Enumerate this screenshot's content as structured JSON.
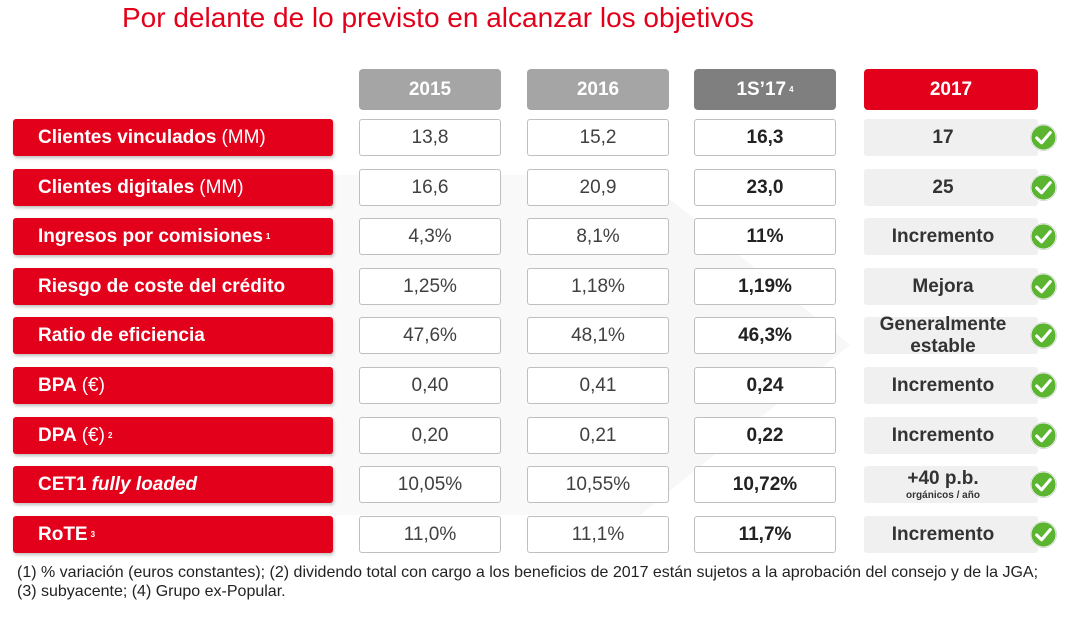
{
  "title": "Por delante de lo previsto en alcanzar los objetivos",
  "headers": [
    {
      "label": "2015",
      "sup": ""
    },
    {
      "label": "2016",
      "sup": ""
    },
    {
      "label": "1S’17",
      "sup": "4"
    },
    {
      "label": "2017",
      "sup": ""
    }
  ],
  "rows": [
    {
      "label": "Clientes vinculados",
      "unit": "(MM)",
      "sup": "",
      "v2015": "13,8",
      "v2016": "15,2",
      "v1s17": "16,3",
      "target": "17"
    },
    {
      "label": "Clientes digitales",
      "unit": "(MM)",
      "sup": "",
      "v2015": "16,6",
      "v2016": "20,9",
      "v1s17": "23,0",
      "target": "25"
    },
    {
      "label": "Ingresos por comisiones",
      "unit": "",
      "sup": "1",
      "v2015": "4,3%",
      "v2016": "8,1%",
      "v1s17": "11%",
      "target": "Incremento"
    },
    {
      "label": "Riesgo de coste del crédito",
      "unit": "",
      "sup": "",
      "v2015": "1,25%",
      "v2016": "1,18%",
      "v1s17": "1,19%",
      "target": "Mejora"
    },
    {
      "label": "Ratio de eficiencia",
      "unit": "",
      "sup": "",
      "v2015": "47,6%",
      "v2016": "48,1%",
      "v1s17": "46,3%",
      "target_line1": "Generalmente",
      "target_line2": "estable"
    },
    {
      "label": "BPA",
      "unit": "(€)",
      "sup": "",
      "v2015": "0,40",
      "v2016": "0,41",
      "v1s17": "0,24",
      "target": "Incremento"
    },
    {
      "label": "DPA",
      "unit": "(€)",
      "sup": "2",
      "v2015": "0,20",
      "v2016": "0,21",
      "v1s17": "0,22",
      "target": "Incremento"
    },
    {
      "label": "CET1",
      "italic": "fully loaded",
      "unit": "",
      "sup": "",
      "v2015": "10,05%",
      "v2016": "10,55%",
      "v1s17": "10,72%",
      "target_line1": "+40 p.b.",
      "target_line2": "orgánicos / año"
    },
    {
      "label": "RoTE",
      "unit": "",
      "sup": "3",
      "v2015": "11,0%",
      "v2016": "11,1%",
      "v1s17": "11,7%",
      "target": "Incremento"
    }
  ],
  "footnote": "(1) % variación (euros constantes); (2) dividendo total con cargo a los beneficios de 2017 están sujetos a la aprobación del consejo y de la JGA; (3) subyacente; (4) Grupo ex-Popular.",
  "colors": {
    "brand": "#e2001a",
    "check": "#5cb531"
  },
  "icons": {
    "check": "check-circle-icon"
  }
}
